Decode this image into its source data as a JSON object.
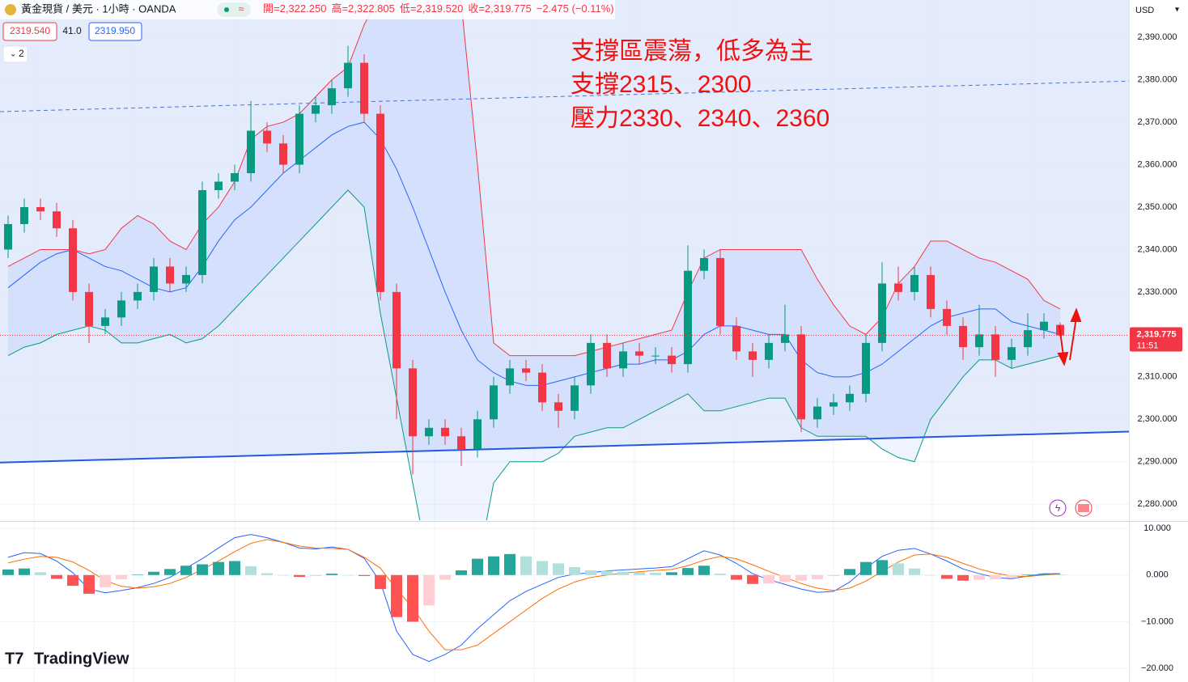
{
  "header": {
    "symbol": "黃金現貨 / 美元 · 1小時 · OANDA",
    "ohlc": [
      "開=2,322.250",
      "高=2,322.805",
      "低=2,319.520",
      "收=2,319.775"
    ],
    "change": "−2.475 (−0.11%)",
    "bid": "2319.540",
    "spread": "41.0",
    "ask": "2319.950",
    "indicators": "2",
    "currency": "USD"
  },
  "annotations": [
    "支撐區震蕩，低多為主",
    "支撐2315、2300",
    "壓力2330、2340、2360"
  ],
  "logo": "TradingView",
  "chart_data": [
    {
      "type": "candlestick",
      "ylim": [
        2276.8,
        2398.8
      ],
      "yticks": [
        {
          "value": 2390,
          "label": "2,390.000"
        },
        {
          "value": 2380,
          "label": "2,380.000"
        },
        {
          "value": 2370,
          "label": "2,370.000"
        },
        {
          "value": 2360,
          "label": "2,360.000"
        },
        {
          "value": 2350,
          "label": "2,350.000"
        },
        {
          "value": 2340,
          "label": "2,340.000"
        },
        {
          "value": 2330,
          "label": "2,330.000"
        },
        {
          "value": 2320,
          "label": "2,320.000"
        },
        {
          "value": 2310,
          "label": "2,310.000"
        },
        {
          "value": 2300,
          "label": "2,300.000"
        },
        {
          "value": 2290,
          "label": "2,290.000"
        },
        {
          "value": 2280,
          "label": "2,280.000"
        }
      ],
      "up_color": "#089981",
      "down_color": "#f23645",
      "open": [
        2340,
        2346,
        2350,
        2349,
        2345,
        2330,
        2322,
        2324,
        2328,
        2330,
        2336,
        2332,
        2334,
        2354,
        2356,
        2358,
        2368,
        2365,
        2360,
        2372,
        2374,
        2378,
        2384,
        2372,
        2330,
        2312,
        2296,
        2298,
        2296,
        2293,
        2300,
        2308,
        2312,
        2311,
        2304,
        2302,
        2308,
        2318,
        2312,
        2316,
        2315,
        2315,
        2313,
        2335,
        2338,
        2322,
        2316,
        2314,
        2318,
        2320,
        2300,
        2303,
        2304,
        2306,
        2318,
        2332,
        2330,
        2334,
        2326,
        2322,
        2317,
        2320,
        2314,
        2317,
        2321,
        2322.25
      ],
      "high": [
        2348,
        2352,
        2352,
        2351,
        2347,
        2332,
        2326,
        2330,
        2332,
        2338,
        2338,
        2336,
        2356,
        2358,
        2360,
        2375,
        2370,
        2367,
        2374,
        2376,
        2380,
        2388,
        2386,
        2374,
        2332,
        2314,
        2300,
        2300,
        2298,
        2302,
        2310,
        2314,
        2314,
        2313,
        2306,
        2310,
        2320,
        2320,
        2318,
        2318,
        2317,
        2317,
        2341,
        2340,
        2340,
        2324,
        2318,
        2320,
        2327,
        2322,
        2305,
        2306,
        2308,
        2320,
        2337,
        2336,
        2336,
        2336,
        2328,
        2324,
        2327,
        2322,
        2319,
        2325,
        2325,
        2322.805
      ],
      "low": [
        2338,
        2344,
        2347,
        2343,
        2328,
        2318,
        2320,
        2322,
        2326,
        2328,
        2330,
        2330,
        2332,
        2352,
        2354,
        2356,
        2363,
        2358,
        2358,
        2370,
        2372,
        2376,
        2370,
        2328,
        2300,
        2287,
        2294,
        2294,
        2289,
        2291,
        2298,
        2306,
        2309,
        2302,
        2298,
        2300,
        2306,
        2310,
        2310,
        2313,
        2313,
        2311,
        2311,
        2333,
        2320,
        2314,
        2310,
        2312,
        2316,
        2297,
        2298,
        2301,
        2302,
        2304,
        2316,
        2328,
        2328,
        2324,
        2320,
        2314,
        2315,
        2310,
        2312,
        2315,
        2319,
        2319.52
      ],
      "close": [
        2346,
        2350,
        2349,
        2345,
        2330,
        2322,
        2324,
        2328,
        2330,
        2336,
        2332,
        2334,
        2354,
        2356,
        2358,
        2368,
        2365,
        2360,
        2372,
        2374,
        2378,
        2384,
        2372,
        2330,
        2312,
        2296,
        2298,
        2296,
        2293,
        2300,
        2308,
        2312,
        2311,
        2304,
        2302,
        2308,
        2318,
        2312,
        2316,
        2315,
        2315,
        2313,
        2335,
        2338,
        2322,
        2316,
        2314,
        2318,
        2320,
        2300,
        2303,
        2304,
        2306,
        2318,
        2332,
        2330,
        2334,
        2326,
        2322,
        2317,
        2320,
        2314,
        2317,
        2321,
        2323,
        2319.775
      ],
      "bollinger": {
        "upper": {
          "color": "#f23645",
          "values": [
            2336,
            2338,
            2340,
            2340,
            2340,
            2339,
            2340,
            2345,
            2348,
            2346,
            2342,
            2340,
            2346,
            2350,
            2356,
            2366,
            2369,
            2370,
            2372,
            2376,
            2380,
            2383,
            2393,
            2400,
            2405,
            2410,
            2410,
            2405,
            2398,
            2360,
            2318,
            2315,
            2315,
            2315,
            2315,
            2315,
            2316,
            2317,
            2318,
            2319,
            2320,
            2321,
            2330,
            2338,
            2340,
            2340,
            2340,
            2340,
            2340,
            2340,
            2333,
            2327,
            2322,
            2320,
            2324,
            2332,
            2336,
            2342,
            2342,
            2340,
            2338,
            2337,
            2335,
            2333,
            2328,
            2326
          ]
        },
        "middle": {
          "color": "#2962ff",
          "values": [
            2331,
            2334,
            2337,
            2339,
            2340,
            2338,
            2336,
            2335,
            2333,
            2331,
            2330,
            2331,
            2336,
            2342,
            2347,
            2350,
            2354,
            2358,
            2361,
            2364,
            2367,
            2369,
            2370,
            2366,
            2359,
            2350,
            2340,
            2330,
            2321,
            2314,
            2311,
            2309,
            2308,
            2308,
            2309,
            2310,
            2311,
            2312,
            2313,
            2313,
            2314,
            2314,
            2316,
            2320,
            2322,
            2322,
            2321,
            2320,
            2320,
            2314,
            2311,
            2310,
            2310,
            2311,
            2313,
            2316,
            2319,
            2322,
            2324,
            2325,
            2326,
            2326,
            2323,
            2322,
            2321,
            2320
          ]
        },
        "lower": {
          "color": "#089981",
          "values": [
            2315,
            2317,
            2318,
            2320,
            2321,
            2322,
            2321,
            2318,
            2318,
            2319,
            2320,
            2318,
            2319,
            2322,
            2326,
            2330,
            2334,
            2338,
            2342,
            2346,
            2350,
            2354,
            2350,
            2325,
            2305,
            2285,
            2265,
            2250,
            2240,
            2265,
            2285,
            2290,
            2290,
            2290,
            2292,
            2296,
            2297,
            2298,
            2298,
            2300,
            2302,
            2304,
            2306,
            2302,
            2302,
            2303,
            2304,
            2305,
            2305,
            2298,
            2296,
            2296,
            2296,
            2296,
            2293,
            2291,
            2290,
            2300,
            2305,
            2310,
            2314,
            2314,
            2312,
            2313,
            2314,
            2315
          ]
        }
      },
      "trendlines": [
        {
          "style": "solid",
          "color": "#2458e0",
          "y": [
            2289.8,
            2297.1
          ]
        },
        {
          "style": "dashed",
          "color": "#4a6fd8",
          "y": [
            2372.5,
            2379.7
          ]
        }
      ],
      "last_price": {
        "value": 2319.775,
        "label": "2,319.775",
        "time": "11:51",
        "color": "#f23645"
      }
    },
    {
      "type": "macd",
      "ylim": [
        -22.9,
        11.4
      ],
      "yticks": [
        {
          "value": 10,
          "label": "10.000"
        },
        {
          "value": 0,
          "label": "0.000"
        },
        {
          "value": -10,
          "label": "−10.000"
        },
        {
          "value": -20,
          "label": "−20.000"
        }
      ],
      "series": [
        {
          "name": "MACD",
          "kind": "line",
          "color": "#2962ff",
          "values": [
            3.8,
            4.8,
            4.6,
            3,
            0.5,
            -3,
            -3.8,
            -3.3,
            -2.7,
            -1.8,
            -0.5,
            1.5,
            3.5,
            5.8,
            8,
            8.7,
            8,
            7,
            5.8,
            5.6,
            6,
            5.5,
            3.6,
            -1.5,
            -12,
            -17,
            -18.5,
            -17,
            -15,
            -11.5,
            -8.5,
            -5.5,
            -3.5,
            -2,
            -0.5,
            0.2,
            0.5,
            0.9,
            1.1,
            1.3,
            1.5,
            1.8,
            3.5,
            5.2,
            4.3,
            2.5,
            0.3,
            -1,
            -2,
            -3,
            -3.7,
            -3.5,
            -1.5,
            1.5,
            4,
            5.3,
            5.7,
            4.5,
            3,
            1.3,
            0.3,
            -0.5,
            -0.8,
            -0.2,
            0.3,
            0.3
          ]
        },
        {
          "name": "Signal",
          "kind": "line",
          "color": "#ff6d00",
          "values": [
            2.6,
            3.4,
            4,
            3.8,
            2.8,
            1,
            -1.2,
            -2.4,
            -2.8,
            -2.5,
            -1.8,
            -0.5,
            1.2,
            3,
            5,
            6.8,
            7.6,
            7,
            6.2,
            5.8,
            5.7,
            5.5,
            3.8,
            1.5,
            -3,
            -7,
            -12,
            -16,
            -16,
            -15,
            -12.5,
            -10,
            -7.5,
            -5,
            -3,
            -1.5,
            -0.5,
            0,
            0.4,
            0.7,
            1,
            1.2,
            2,
            3.2,
            4,
            3.5,
            2.2,
            0.8,
            -0.5,
            -1.8,
            -2.8,
            -3.3,
            -2.8,
            -1.3,
            0.8,
            2.8,
            4.3,
            4.5,
            3.8,
            2.5,
            1.3,
            0.4,
            -0.2,
            -0.3,
            0,
            0.2
          ]
        },
        {
          "name": "Histogram",
          "kind": "histogram",
          "values": [
            1.2,
            1.4,
            0.6,
            -0.8,
            -2.3,
            -4,
            -2.6,
            -0.9,
            0.1,
            0.7,
            1.3,
            2,
            2.3,
            2.8,
            3,
            1.9,
            0.4,
            0,
            -0.4,
            -0.2,
            0.3,
            0,
            -0.2,
            -3,
            -9,
            -10,
            -6.5,
            -1,
            1,
            3.5,
            4,
            4.5,
            4,
            3,
            2.5,
            1.7,
            1,
            0.9,
            0.7,
            0.6,
            0.5,
            0.6,
            1.5,
            2,
            0.3,
            -1,
            -1.9,
            -1.8,
            -1.5,
            -1.2,
            -0.9,
            -0.2,
            1.3,
            2.8,
            3.2,
            2.5,
            1.4,
            0,
            -0.8,
            -1.2,
            -1,
            -0.9,
            -0.6,
            0.1,
            0.3,
            0.1
          ]
        }
      ]
    }
  ]
}
